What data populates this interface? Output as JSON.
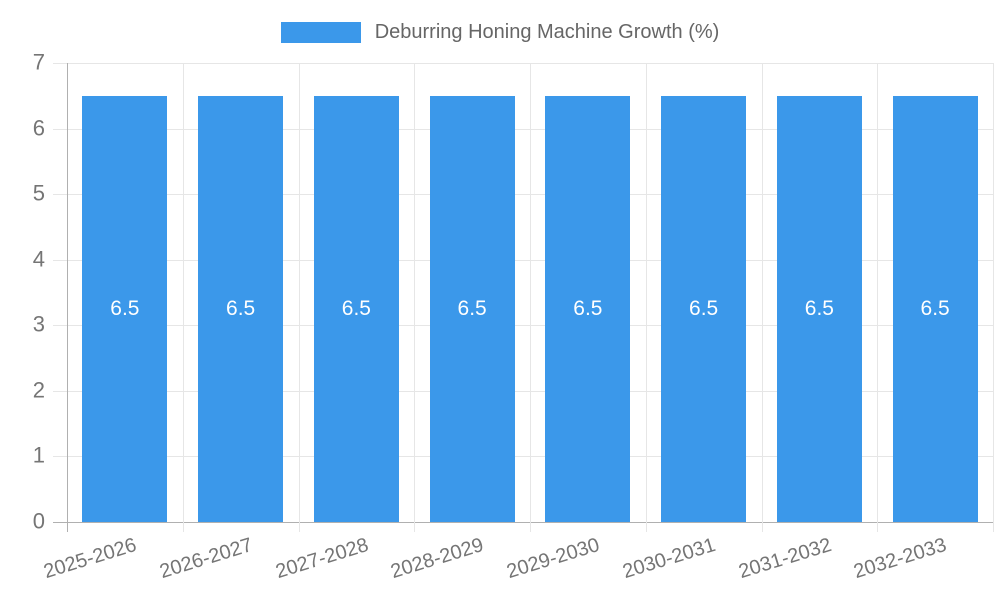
{
  "legend": {
    "label": "Deburring Honing Machine Growth (%)"
  },
  "colors": {
    "bar": "#3b98ea",
    "grid": "#e6e6e6",
    "axis": "#b0b0b0",
    "tick_label": "#757575",
    "legend_text": "#666666",
    "value_label": "#ffffff",
    "background": "#ffffff"
  },
  "chart_data": {
    "type": "bar",
    "title": "Deburring Honing Machine Growth (%)",
    "categories": [
      "2025-2026",
      "2026-2027",
      "2027-2028",
      "2028-2029",
      "2029-2030",
      "2030-2031",
      "2031-2032",
      "2032-2033"
    ],
    "values": [
      6.5,
      6.5,
      6.5,
      6.5,
      6.5,
      6.5,
      6.5,
      6.5
    ],
    "value_labels": [
      "6.5",
      "6.5",
      "6.5",
      "6.5",
      "6.5",
      "6.5",
      "6.5",
      "6.5"
    ],
    "xlabel": "",
    "ylabel": "",
    "ylim": [
      0,
      7
    ],
    "yticks": [
      0,
      1,
      2,
      3,
      4,
      5,
      6,
      7
    ],
    "grid": true,
    "legend_position": "top",
    "value_label_position": "inside-center"
  }
}
